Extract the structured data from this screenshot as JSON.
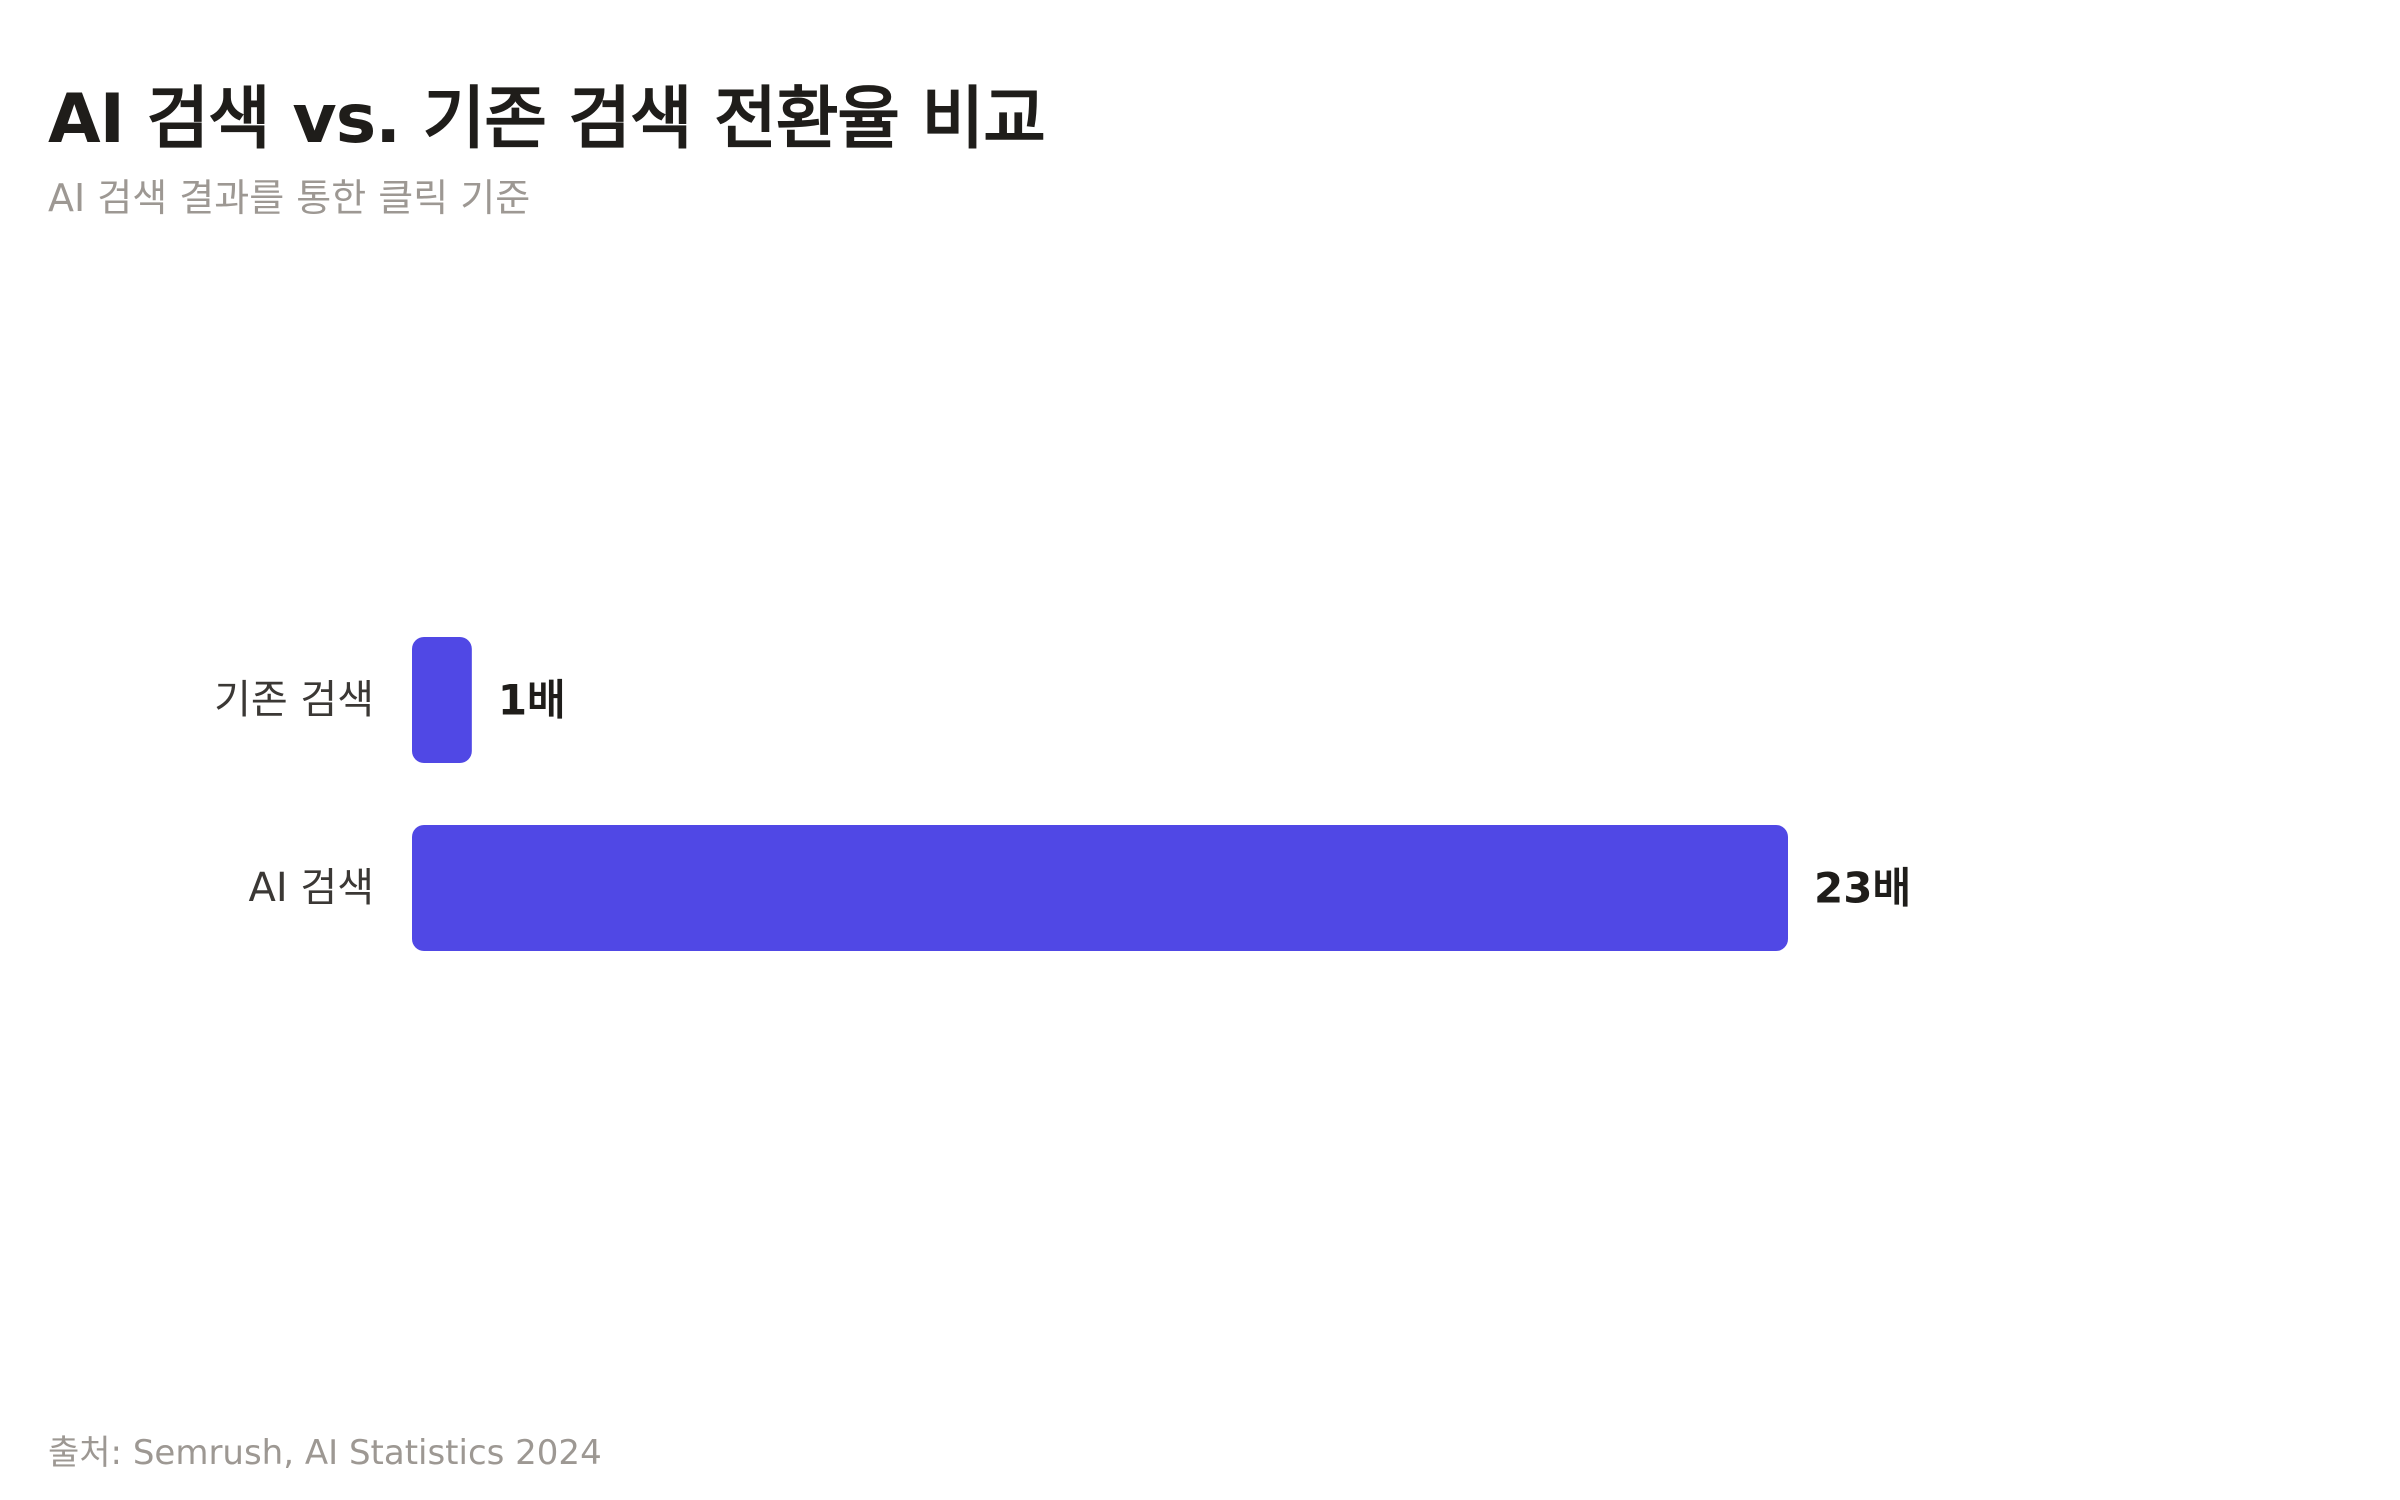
{
  "header": {
    "title": "AI 검색 vs. 기존 검색 전환율 비교",
    "subtitle": "AI 검색 결과를 통한 클릭 기준"
  },
  "footer": {
    "source": "출처: Semrush, AI Statistics 2024"
  },
  "chart_data": {
    "type": "bar",
    "orientation": "horizontal",
    "title": "AI 검색 vs. 기존 검색 전환율 비교",
    "subtitle": "AI 검색 결과를 통한 클릭 기준",
    "categories": [
      "기존 검색",
      "AI 검색"
    ],
    "values": [
      1,
      23
    ],
    "value_labels": [
      "1배",
      "23배"
    ],
    "xlim": [
      0,
      23
    ],
    "grid": false,
    "legend": "none",
    "colors": {
      "bar": "#5048E5",
      "title": "#1f1d1a",
      "muted": "#9d9893"
    }
  }
}
